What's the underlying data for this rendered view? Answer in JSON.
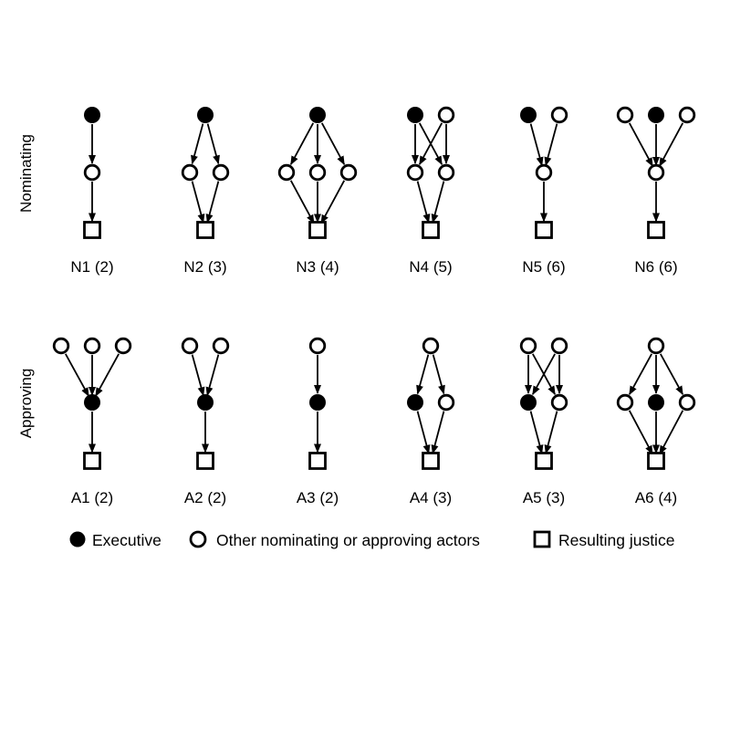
{
  "rows": [
    {
      "label": "Nominating",
      "panels": [
        {
          "label": "N1 (2)",
          "structure": {
            "top": [
              "executive"
            ],
            "middle": [
              "other"
            ],
            "bottom": [
              "justice"
            ],
            "links": "chain"
          }
        },
        {
          "label": "N2 (3)",
          "structure": {
            "top": [
              "executive"
            ],
            "middle": [
              "other",
              "other"
            ],
            "bottom": [
              "justice"
            ],
            "links": "fan-out-fan-in"
          }
        },
        {
          "label": "N3 (4)",
          "structure": {
            "top": [
              "executive"
            ],
            "middle": [
              "other",
              "other",
              "other"
            ],
            "bottom": [
              "justice"
            ],
            "links": "fan-out-fan-in"
          }
        },
        {
          "label": "N4 (5)",
          "structure": {
            "top": [
              "executive",
              "other"
            ],
            "middle": [
              "other",
              "other"
            ],
            "bottom": [
              "justice"
            ],
            "links": "full-bipartite"
          }
        },
        {
          "label": "N5 (6)",
          "structure": {
            "top": [
              "executive",
              "other"
            ],
            "middle": [
              "other"
            ],
            "bottom": [
              "justice"
            ],
            "links": "fan-in-chain"
          }
        },
        {
          "label": "N6 (6)",
          "structure": {
            "top": [
              "other",
              "executive",
              "other"
            ],
            "middle": [
              "other"
            ],
            "bottom": [
              "justice"
            ],
            "links": "fan-in-chain"
          }
        }
      ]
    },
    {
      "label": "Approving",
      "panels": [
        {
          "label": "A1 (2)",
          "structure": {
            "top": [
              "other",
              "other",
              "other"
            ],
            "middle": [
              "executive"
            ],
            "bottom": [
              "justice"
            ],
            "links": "fan-in-chain"
          }
        },
        {
          "label": "A2 (2)",
          "structure": {
            "top": [
              "other",
              "other"
            ],
            "middle": [
              "executive"
            ],
            "bottom": [
              "justice"
            ],
            "links": "fan-in-chain"
          }
        },
        {
          "label": "A3 (2)",
          "structure": {
            "top": [
              "other"
            ],
            "middle": [
              "executive"
            ],
            "bottom": [
              "justice"
            ],
            "links": "chain"
          }
        },
        {
          "label": "A4 (3)",
          "structure": {
            "top": [
              "other"
            ],
            "middle": [
              "executive",
              "other"
            ],
            "bottom": [
              "justice"
            ],
            "links": "fan-out-fan-in"
          }
        },
        {
          "label": "A5 (3)",
          "structure": {
            "top": [
              "other",
              "other"
            ],
            "middle": [
              "executive",
              "other"
            ],
            "bottom": [
              "justice"
            ],
            "links": "full-bipartite"
          }
        },
        {
          "label": "A6 (4)",
          "structure": {
            "top": [
              "other"
            ],
            "middle": [
              "other",
              "executive",
              "other"
            ],
            "bottom": [
              "justice"
            ],
            "links": "fan-out-fan-in"
          }
        }
      ]
    }
  ],
  "legend": [
    {
      "symbol": "filled-circle",
      "label": "Executive"
    },
    {
      "symbol": "open-circle",
      "label": "Other nominating or approving actors"
    },
    {
      "symbol": "open-square",
      "label": "Resulting justice"
    }
  ],
  "colors": {
    "ink": "#000000",
    "background": "#ffffff"
  }
}
